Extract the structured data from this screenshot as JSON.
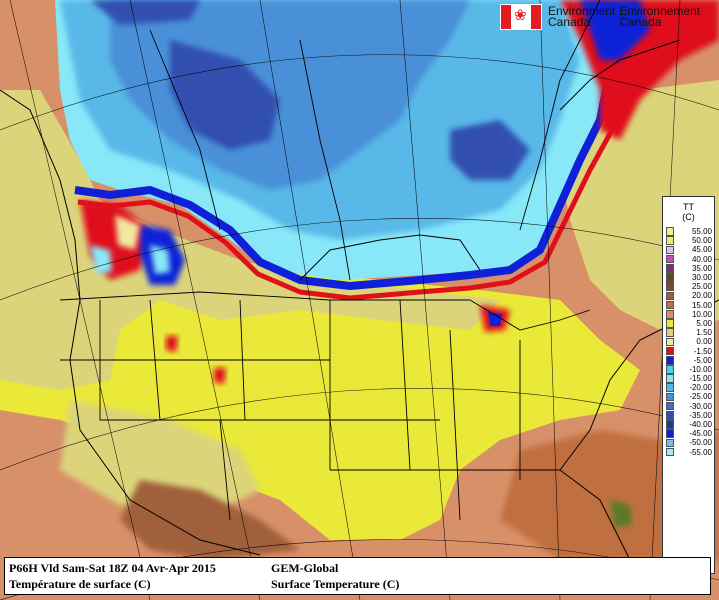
{
  "logo": {
    "line1_en": "Environment",
    "line1_fr": "Environnement",
    "line2_en": "Canada",
    "line2_fr": "Canada",
    "flag_color": "#e31b23"
  },
  "legend": {
    "var_code": "TT",
    "units": "(C)",
    "entries": [
      {
        "label": "55.00",
        "color": "#f0ee8e"
      },
      {
        "label": "50.00",
        "color": "#ecea66"
      },
      {
        "label": "45.00",
        "color": "#d8c4ea"
      },
      {
        "label": "40.00",
        "color": "#c050c0"
      },
      {
        "label": "35.00",
        "color": "#7a3078"
      },
      {
        "label": "30.00",
        "color": "#5a4a2a"
      },
      {
        "label": "25.00",
        "color": "#7a4a2a"
      },
      {
        "label": "20.00",
        "color": "#a0603a"
      },
      {
        "label": "15.00",
        "color": "#c07040"
      },
      {
        "label": "10.00",
        "color": "#d89068"
      },
      {
        "label": "5.00",
        "color": "#eae838"
      },
      {
        "label": "1.50",
        "color": "#dcd47a"
      },
      {
        "label": "0.00",
        "color": "#f2e8a0"
      },
      {
        "label": "-1.50",
        "color": "#e0101a"
      },
      {
        "label": "-5.00",
        "color": "#1020d8"
      },
      {
        "label": "-10.00",
        "color": "#40d8f0"
      },
      {
        "label": "-15.00",
        "color": "#88e8f8"
      },
      {
        "label": "-20.00",
        "color": "#58b8e8"
      },
      {
        "label": "-25.00",
        "color": "#4890d8"
      },
      {
        "label": "-30.00",
        "color": "#4070c8"
      },
      {
        "label": "-35.00",
        "color": "#3050b0"
      },
      {
        "label": "-40.00",
        "color": "#203890"
      },
      {
        "label": "-45.00",
        "color": "#1020d0"
      },
      {
        "label": "-50.00",
        "color": "#70c0e8"
      },
      {
        "label": "-55.00",
        "color": "#a0e8f8"
      }
    ]
  },
  "caption": {
    "valid_line": "P66H Vld Sam-Sat 18Z 04 Avr-Apr 2015",
    "model": "GEM-Global",
    "title_fr": "Température de surface (C)",
    "title_en": "Surface Temperature (C)"
  }
}
